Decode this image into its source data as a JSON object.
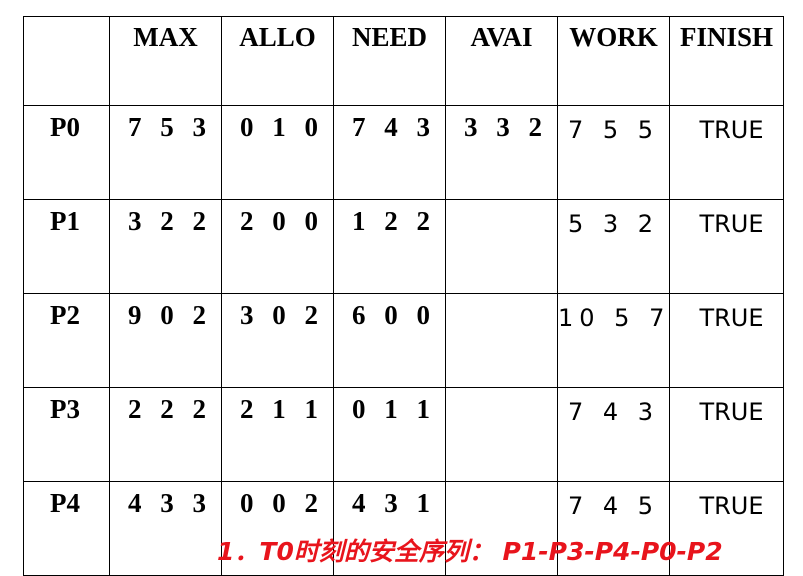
{
  "table": {
    "headers": [
      "",
      "MAX",
      "ALLO",
      "NEED",
      "AVAI",
      "WORK",
      "FINISH"
    ],
    "rows": [
      {
        "process": "P0",
        "max": "7 5 3",
        "allo": "0 1 0",
        "need": "7 4 3",
        "avai": "3 3 2",
        "work": "7 5 5",
        "finish": "TRUE"
      },
      {
        "process": "P1",
        "max": "3 2 2",
        "allo": "2 0 0",
        "need": "1 2 2",
        "avai": "",
        "work": "5 3 2",
        "finish": "TRUE"
      },
      {
        "process": "P2",
        "max": "9 0 2",
        "allo": "3 0 2",
        "need": "6 0 0",
        "avai": "",
        "work": "10 5 7",
        "finish": "TRUE"
      },
      {
        "process": "P3",
        "max": "2 2 2",
        "allo": "2 1 1",
        "need": "0 1 1",
        "avai": "",
        "work": "7 4 3",
        "finish": "TRUE"
      },
      {
        "process": "P4",
        "max": "4 3 3",
        "allo": "0 0 2",
        "need": "4 3 1",
        "avai": "",
        "work": "7 4 5",
        "finish": "TRUE"
      }
    ]
  },
  "caption": "1．T0时刻的安全序列： P1-P3-P4-P0-P2",
  "colors": {
    "caption": "#e8141c",
    "border": "#000000"
  }
}
